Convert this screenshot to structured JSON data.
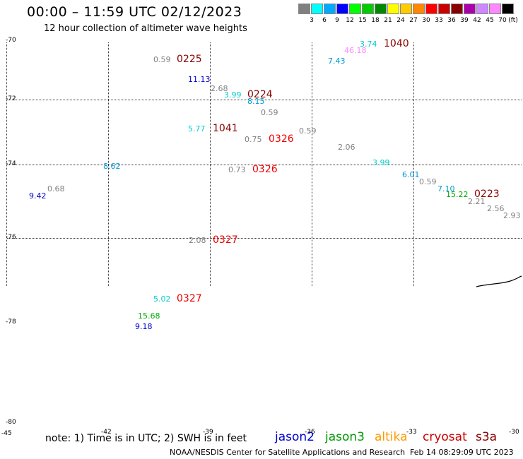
{
  "header": {
    "title": "00:00 – 11:59 UTC 02/12/2023",
    "subtitle": "12 hour collection of altimeter wave heights"
  },
  "legend": {
    "unit": "(ft)",
    "bins": [
      {
        "label": "3",
        "color": "#808080"
      },
      {
        "label": "6",
        "color": "#00ffff"
      },
      {
        "label": "9",
        "color": "#00aaff"
      },
      {
        "label": "12",
        "color": "#0000ff"
      },
      {
        "label": "15",
        "color": "#00ff00"
      },
      {
        "label": "18",
        "color": "#00cc00"
      },
      {
        "label": "21",
        "color": "#008800"
      },
      {
        "label": "24",
        "color": "#ffff00"
      },
      {
        "label": "27",
        "color": "#ffcc00"
      },
      {
        "label": "30",
        "color": "#ff8800"
      },
      {
        "label": "33",
        "color": "#ff0000"
      },
      {
        "label": "36",
        "color": "#cc0000"
      },
      {
        "label": "39",
        "color": "#880000"
      },
      {
        "label": "42",
        "color": "#aa00aa"
      },
      {
        "label": "45",
        "color": "#cc88ff"
      },
      {
        "label": "70",
        "color": "#ff88ff"
      },
      {
        "label": "",
        "color": "#000000"
      }
    ]
  },
  "axes": {
    "lat_labels": [
      "-70",
      "-72",
      "-74",
      "-76",
      "-78",
      "-80"
    ],
    "lon_labels": [
      "-45",
      "-42",
      "-39",
      "-36",
      "-33",
      "-30"
    ]
  },
  "observations": [
    {
      "value": "0.59",
      "color": "#808080"
    },
    {
      "value": "11.13",
      "color": "#0000cc"
    },
    {
      "value": "2.68",
      "color": "#808080"
    },
    {
      "value": "3.99",
      "color": "#00cccc"
    },
    {
      "value": "8.15",
      "color": "#0099cc"
    },
    {
      "value": "0.59",
      "color": "#808080"
    },
    {
      "value": "5.77",
      "color": "#00cccc"
    },
    {
      "value": "0.75",
      "color": "#808080"
    },
    {
      "value": "0.59",
      "color": "#808080"
    },
    {
      "value": "2.06",
      "color": "#808080"
    },
    {
      "value": "0.73",
      "color": "#808080"
    },
    {
      "value": "8.62",
      "color": "#0099cc"
    },
    {
      "value": "0.68",
      "color": "#808080"
    },
    {
      "value": "9.42",
      "color": "#0000cc"
    },
    {
      "value": "3.74",
      "color": "#00cccc"
    },
    {
      "value": "46.18",
      "color": "#ff88ff"
    },
    {
      "value": "7.43",
      "color": "#0099cc"
    },
    {
      "value": "3.99",
      "color": "#00cccc"
    },
    {
      "value": "6.01",
      "color": "#0099cc"
    },
    {
      "value": "0.59",
      "color": "#808080"
    },
    {
      "value": "7.10",
      "color": "#0099cc"
    },
    {
      "value": "15.22",
      "color": "#00aa00"
    },
    {
      "value": "2.21",
      "color": "#808080"
    },
    {
      "value": "2.56",
      "color": "#808080"
    },
    {
      "value": "2.93",
      "color": "#808080"
    },
    {
      "value": "2.08",
      "color": "#808080"
    },
    {
      "value": "5.02",
      "color": "#00cccc"
    },
    {
      "value": "15.68",
      "color": "#00aa00"
    },
    {
      "value": "9.18",
      "color": "#0000cc"
    }
  ],
  "pass_times": [
    {
      "value": "0225",
      "color": "#880000"
    },
    {
      "value": "0224",
      "color": "#880000"
    },
    {
      "value": "1041",
      "color": "#880000"
    },
    {
      "value": "0326",
      "color": "#ee0000"
    },
    {
      "value": "0326",
      "color": "#ee0000"
    },
    {
      "value": "1040",
      "color": "#880000"
    },
    {
      "value": "0223",
      "color": "#880000"
    },
    {
      "value": "0327",
      "color": "#ee0000"
    },
    {
      "value": "0327",
      "color": "#ee0000"
    }
  ],
  "footer": {
    "note": "note: 1) Time is in UTC; 2) SWH is in feet",
    "satellites": [
      {
        "name": "jason2",
        "color": "#0000cc"
      },
      {
        "name": "jason3",
        "color": "#009900"
      },
      {
        "name": "altika",
        "color": "#ff9900"
      },
      {
        "name": "cryosat",
        "color": "#cc0000"
      },
      {
        "name": "s3a",
        "color": "#880000"
      }
    ],
    "credit": "NOAA/NESDIS Center for Satellite Applications and Research",
    "timestamp": "Feb 14 08:29:09 UTC 2023"
  }
}
